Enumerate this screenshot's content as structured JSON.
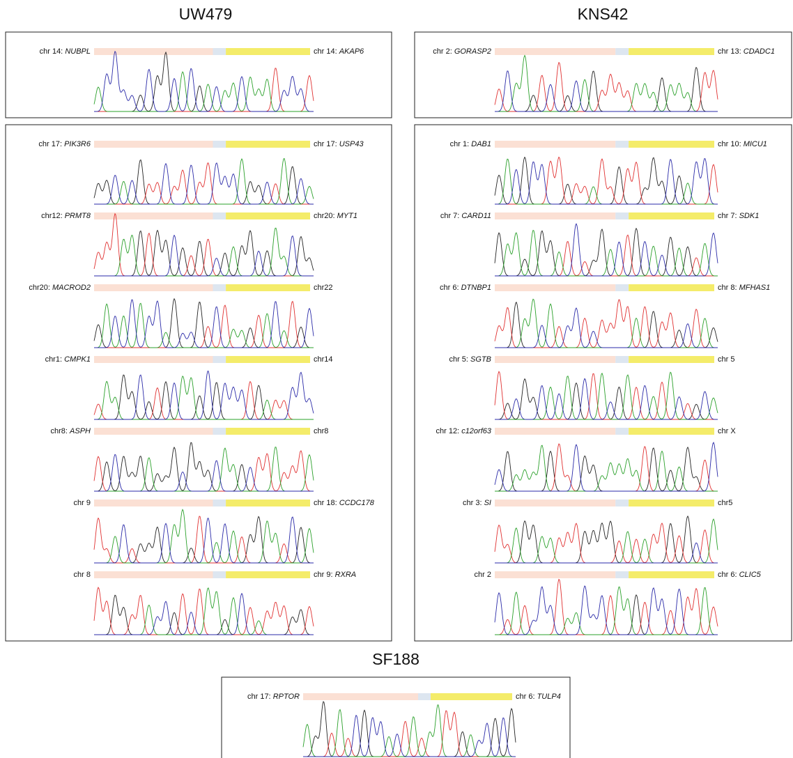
{
  "panels": [
    {
      "title": "UW479",
      "boxes": [
        [
          {
            "left": {
              "chr": "chr 14:",
              "gene": "NUBPL"
            },
            "right": {
              "chr": "chr 14:",
              "gene": "AKAP6"
            }
          }
        ],
        [
          {
            "left": {
              "chr": "chr 17:",
              "gene": "PIK3R6"
            },
            "right": {
              "chr": "chr 17:",
              "gene": "USP43"
            }
          },
          {
            "left": {
              "chr": "chr12:",
              "gene": "PRMT8"
            },
            "right": {
              "chr": "chr20:",
              "gene": "MYT1"
            }
          },
          {
            "left": {
              "chr": "chr20:",
              "gene": "MACROD2"
            },
            "right": {
              "chr": "chr22"
            }
          },
          {
            "left": {
              "chr": "chr1:",
              "gene": "CMPK1"
            },
            "right": {
              "chr": "chr14"
            }
          },
          {
            "left": {
              "chr": "chr8:",
              "gene": "ASPH"
            },
            "right": {
              "chr": "chr8"
            }
          },
          {
            "left": {
              "chr": "chr 9"
            },
            "right": {
              "chr": "chr 18:",
              "gene": "CCDC178"
            }
          },
          {
            "left": {
              "chr": "chr 8"
            },
            "right": {
              "chr": "chr 9:",
              "gene": "RXRA"
            }
          }
        ]
      ]
    },
    {
      "title": "KNS42",
      "boxes": [
        [
          {
            "left": {
              "chr": "chr 2:",
              "gene": "GORASP2"
            },
            "right": {
              "chr": "chr 13:",
              "gene": "CDADC1"
            }
          }
        ],
        [
          {
            "left": {
              "chr": "chr 1:",
              "gene": "DAB1"
            },
            "right": {
              "chr": "chr 10:",
              "gene": "MICU1"
            }
          },
          {
            "left": {
              "chr": "chr 7:",
              "gene": "CARD11"
            },
            "right": {
              "chr": "chr 7:",
              "gene": "SDK1"
            }
          },
          {
            "left": {
              "chr": "chr 6:",
              "gene": "DTNBP1"
            },
            "right": {
              "chr": "chr 8:",
              "gene": "MFHAS1"
            }
          },
          {
            "left": {
              "chr": "chr 5:",
              "gene": "SGTB"
            },
            "right": {
              "chr": "chr 5"
            }
          },
          {
            "left": {
              "chr": "chr 12:",
              "gene": "c12orf63"
            },
            "right": {
              "chr": "chr X"
            }
          },
          {
            "left": {
              "chr": "chr 3:",
              "gene": "SI"
            },
            "right": {
              "chr": "chr5"
            }
          },
          {
            "left": {
              "chr": "chr 2"
            },
            "right": {
              "chr": "chr 6:",
              "gene": "CLIC5"
            }
          }
        ]
      ]
    },
    {
      "title": "SF188",
      "boxes": [
        [
          {
            "left": {
              "chr": "chr 17:",
              "gene": "RPTOR"
            },
            "right": {
              "chr": "chr 6:",
              "gene": "TULP4"
            }
          }
        ]
      ]
    }
  ]
}
